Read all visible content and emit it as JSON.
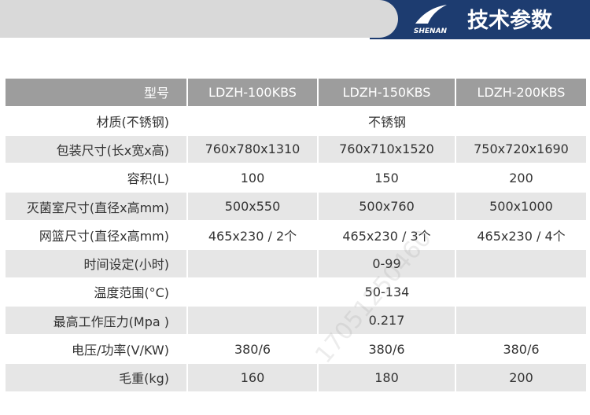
{
  "header": {
    "logo_text": "SHENAN",
    "title": "技术参数"
  },
  "table": {
    "columns": [
      "型号",
      "LDZH-100KBS",
      "LDZH-150KBS",
      "LDZH-200KBS"
    ],
    "rows": [
      {
        "label": "材质(不锈钢)",
        "span": "不锈钢"
      },
      {
        "label": "包装尺寸(长x宽x高)",
        "values": [
          "760x780x1310",
          "760x710x1520",
          "750x720x1690"
        ]
      },
      {
        "label": "容积(L)",
        "values": [
          "100",
          "150",
          "200"
        ]
      },
      {
        "label": "灭菌室尺寸(直径x高mm)",
        "values": [
          "500x550",
          "500x760",
          "500x1000"
        ]
      },
      {
        "label": "网篮尺寸(直径x高mm)",
        "values": [
          "465x230 / 2个",
          "465x230 / 3个",
          "465x230 / 4个"
        ]
      },
      {
        "label": "时间设定(小时)",
        "values": [
          null,
          "0-99",
          null
        ]
      },
      {
        "label": "温度范围(°C)",
        "span": "50-134"
      },
      {
        "label": "最高工作压力(Mpa )",
        "values": [
          null,
          "0.217",
          null
        ]
      },
      {
        "label": "电压/功率(V/KW)",
        "values": [
          "380/6",
          "380/6",
          "380/6"
        ]
      },
      {
        "label": "毛重(kg)",
        "values": [
          "160",
          "180",
          "200"
        ]
      }
    ]
  },
  "watermark": "17051250460"
}
